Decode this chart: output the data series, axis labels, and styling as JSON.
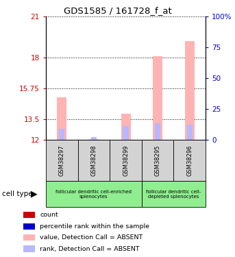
{
  "title": "GDS1585 / 161728_f_at",
  "samples": [
    "GSM38297",
    "GSM38298",
    "GSM38299",
    "GSM38295",
    "GSM38296"
  ],
  "values": [
    15.1,
    12.05,
    13.9,
    18.1,
    19.2
  ],
  "ranks": [
    0.8,
    0.2,
    1.0,
    1.2,
    1.1
  ],
  "ylim_left": [
    12,
    21
  ],
  "ylim_right": [
    0,
    100
  ],
  "yticks_left": [
    12,
    13.5,
    15.75,
    18,
    21
  ],
  "yticks_right": [
    0,
    25,
    50,
    75,
    100
  ],
  "bar_color_absent": "#ffb3b3",
  "rank_color_absent": "#b8b8ff",
  "rank_bar_width": 0.18,
  "value_bar_width": 0.3,
  "group1_label": "follicular dendritic cell-enriched\nsplenocytes",
  "group2_label": "follicular dendritic cell-\ndepleted splenocytes",
  "cell_type_label": "cell type",
  "legend_items": [
    {
      "label": "count",
      "color": "#cc0000"
    },
    {
      "label": "percentile rank within the sample",
      "color": "#0000cc"
    },
    {
      "label": "value, Detection Call = ABSENT",
      "color": "#ffb3b3"
    },
    {
      "label": "rank, Detection Call = ABSENT",
      "color": "#b8b8ff"
    }
  ],
  "left_tick_color": "#cc0000",
  "right_tick_color": "#0000cc",
  "sample_box_color": "#d3d3d3",
  "group_box_color": "#90ee90",
  "grid_color": "black"
}
